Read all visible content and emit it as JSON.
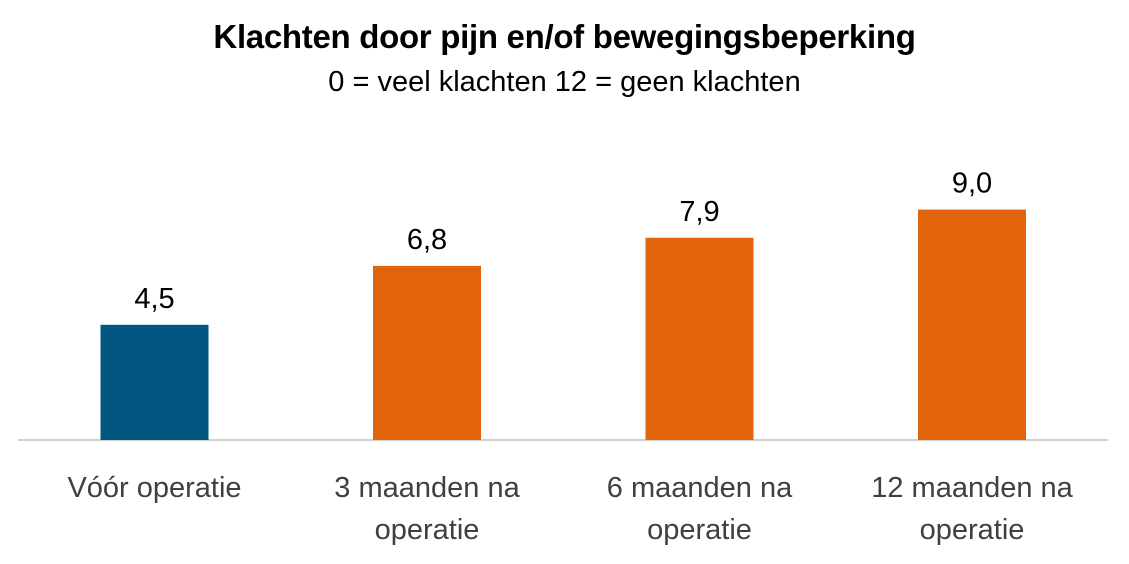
{
  "chart_data": {
    "type": "bar",
    "title": "Klachten door pijn en/of bewegingsbeperking",
    "subtitle": "0 = veel klachten  12 = geen klachten",
    "categories": [
      "Vóór operatie",
      "3 maanden na operatie",
      "6 maanden na operatie",
      "12 maanden na operatie"
    ],
    "values": [
      4.5,
      6.8,
      7.9,
      9.0
    ],
    "data_labels": [
      "4,5",
      "6,8",
      "7,9",
      "9,0"
    ],
    "colors": [
      "#00567F",
      "#E2640A",
      "#E2640A",
      "#E2640A"
    ],
    "xlabel": "",
    "ylabel": "",
    "ylim": [
      0,
      12
    ],
    "grid": false,
    "legend": "none"
  }
}
